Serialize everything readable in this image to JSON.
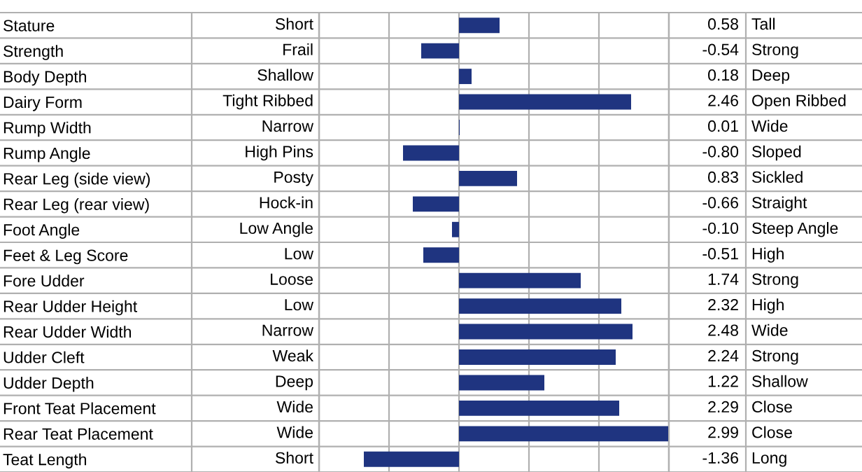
{
  "chart_data": {
    "type": "bar",
    "orientation": "horizontal",
    "color": "#1f3480",
    "categories": [
      "Stature",
      "Strength",
      "Body Depth",
      "Dairy Form",
      "Rump Width",
      "Rump Angle",
      "Rear Leg (side view)",
      "Rear Leg (rear view)",
      "Foot Angle",
      "Feet & Leg Score",
      "Fore Udder",
      "Rear Udder Height",
      "Rear Udder Width",
      "Udder Cleft",
      "Udder Depth",
      "Front Teat Placement",
      "Rear Teat Placement",
      "Teat Length"
    ],
    "values": [
      0.58,
      -0.54,
      0.18,
      2.46,
      0.01,
      -0.8,
      0.83,
      -0.66,
      -0.1,
      -0.51,
      1.74,
      2.32,
      2.48,
      2.24,
      1.22,
      2.29,
      2.99,
      -1.36
    ],
    "value_labels": [
      "0.58",
      "-0.54",
      "0.18",
      "2.46",
      "0.01",
      "-0.80",
      "0.83",
      "-0.66",
      "-0.10",
      "-0.51",
      "1.74",
      "2.32",
      "2.48",
      "2.24",
      "1.22",
      "2.29",
      "2.99",
      "-1.36"
    ],
    "xlim": [
      -2,
      3
    ],
    "xticks": [
      {
        "value": -2,
        "label": null
      },
      {
        "value": -1,
        "label": null
      },
      {
        "value": 0,
        "label": null
      },
      {
        "value": 1,
        "label": null
      },
      {
        "value": 2,
        "label": null
      },
      {
        "value": 3,
        "label": null
      }
    ],
    "grid": "x",
    "tick_labels": "y",
    "annotations": [
      "Short",
      "Tall",
      "Frail",
      "Strong",
      "Shallow",
      "Deep",
      "Tight Ribbed",
      "Open Ribbed",
      "Narrow",
      "Wide",
      "High Pins",
      "Sloped",
      "Posty",
      "Sickled",
      "Hock-in",
      "Straight",
      "Low Angle",
      "Steep Angle",
      "Low",
      "High",
      "Loose",
      "Strong",
      "Low",
      "High",
      "Narrow",
      "Wide",
      "Weak",
      "Strong",
      "Deep",
      "Shallow",
      "Wide",
      "Close",
      "Wide",
      "Close",
      "Short",
      "Long"
    ]
  }
}
